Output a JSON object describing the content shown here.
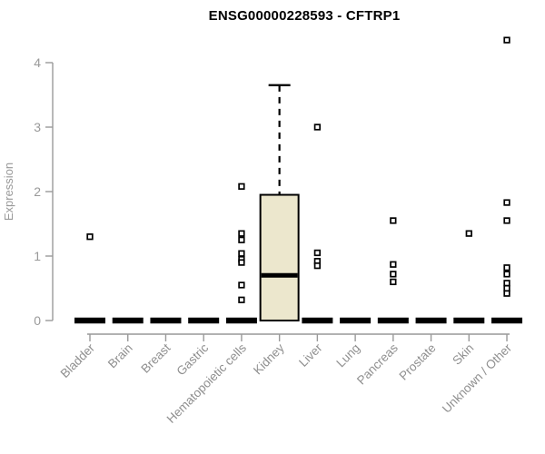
{
  "chart_data": {
    "type": "box",
    "title": "ENSG00000228593 - CFTRP1",
    "ylabel": "Expression",
    "xlabel": "",
    "y_ticks": [
      0,
      1,
      2,
      3,
      4
    ],
    "ylim": [
      0,
      4.4
    ],
    "grid": false,
    "legend": "none",
    "colors": {
      "box_fill": "#ece7cd",
      "box_stroke": "#000000",
      "median": "#000000",
      "whisker": "#000000",
      "outlier_stroke": "#000000",
      "outlier_fill": "#ffffff",
      "axis": "#999999",
      "tick_label": "#999999",
      "title": "#000000"
    },
    "series": [
      {
        "category": "Bladder",
        "box": {
          "q1": 0,
          "median": 0,
          "q3": 0,
          "whisker_low": 0,
          "whisker_high": 0
        },
        "outliers": [
          1.3
        ]
      },
      {
        "category": "Brain",
        "box": {
          "q1": 0,
          "median": 0,
          "q3": 0,
          "whisker_low": 0,
          "whisker_high": 0
        },
        "outliers": []
      },
      {
        "category": "Breast",
        "box": {
          "q1": 0,
          "median": 0,
          "q3": 0,
          "whisker_low": 0,
          "whisker_high": 0
        },
        "outliers": []
      },
      {
        "category": "Gastric",
        "box": {
          "q1": 0,
          "median": 0,
          "q3": 0,
          "whisker_low": 0,
          "whisker_high": 0
        },
        "outliers": []
      },
      {
        "category": "Hematopoietic cells",
        "box": {
          "q1": 0,
          "median": 0,
          "q3": 0,
          "whisker_low": 0,
          "whisker_high": 0
        },
        "outliers": [
          2.08,
          1.35,
          1.25,
          1.04,
          0.95,
          0.9,
          0.55,
          0.32
        ]
      },
      {
        "category": "Kidney",
        "box": {
          "q1": 0,
          "median": 0.7,
          "q3": 1.95,
          "whisker_low": 0,
          "whisker_high": 3.65
        },
        "outliers": []
      },
      {
        "category": "Liver",
        "box": {
          "q1": 0,
          "median": 0,
          "q3": 0,
          "whisker_low": 0,
          "whisker_high": 0
        },
        "outliers": [
          3.0,
          1.05,
          0.92,
          0.85
        ]
      },
      {
        "category": "Lung",
        "box": {
          "q1": 0,
          "median": 0,
          "q3": 0,
          "whisker_low": 0,
          "whisker_high": 0
        },
        "outliers": []
      },
      {
        "category": "Pancreas",
        "box": {
          "q1": 0,
          "median": 0,
          "q3": 0,
          "whisker_low": 0,
          "whisker_high": 0
        },
        "outliers": [
          1.55,
          0.87,
          0.72,
          0.6
        ]
      },
      {
        "category": "Prostate",
        "box": {
          "q1": 0,
          "median": 0,
          "q3": 0,
          "whisker_low": 0,
          "whisker_high": 0
        },
        "outliers": []
      },
      {
        "category": "Skin",
        "box": {
          "q1": 0,
          "median": 0,
          "q3": 0,
          "whisker_low": 0,
          "whisker_high": 0
        },
        "outliers": [
          1.35
        ]
      },
      {
        "category": "Unknown / Other",
        "box": {
          "q1": 0,
          "median": 0,
          "q3": 0,
          "whisker_low": 0,
          "whisker_high": 0
        },
        "outliers": [
          4.35,
          1.83,
          1.55,
          0.82,
          0.72,
          0.58,
          0.5,
          0.42
        ]
      }
    ]
  }
}
